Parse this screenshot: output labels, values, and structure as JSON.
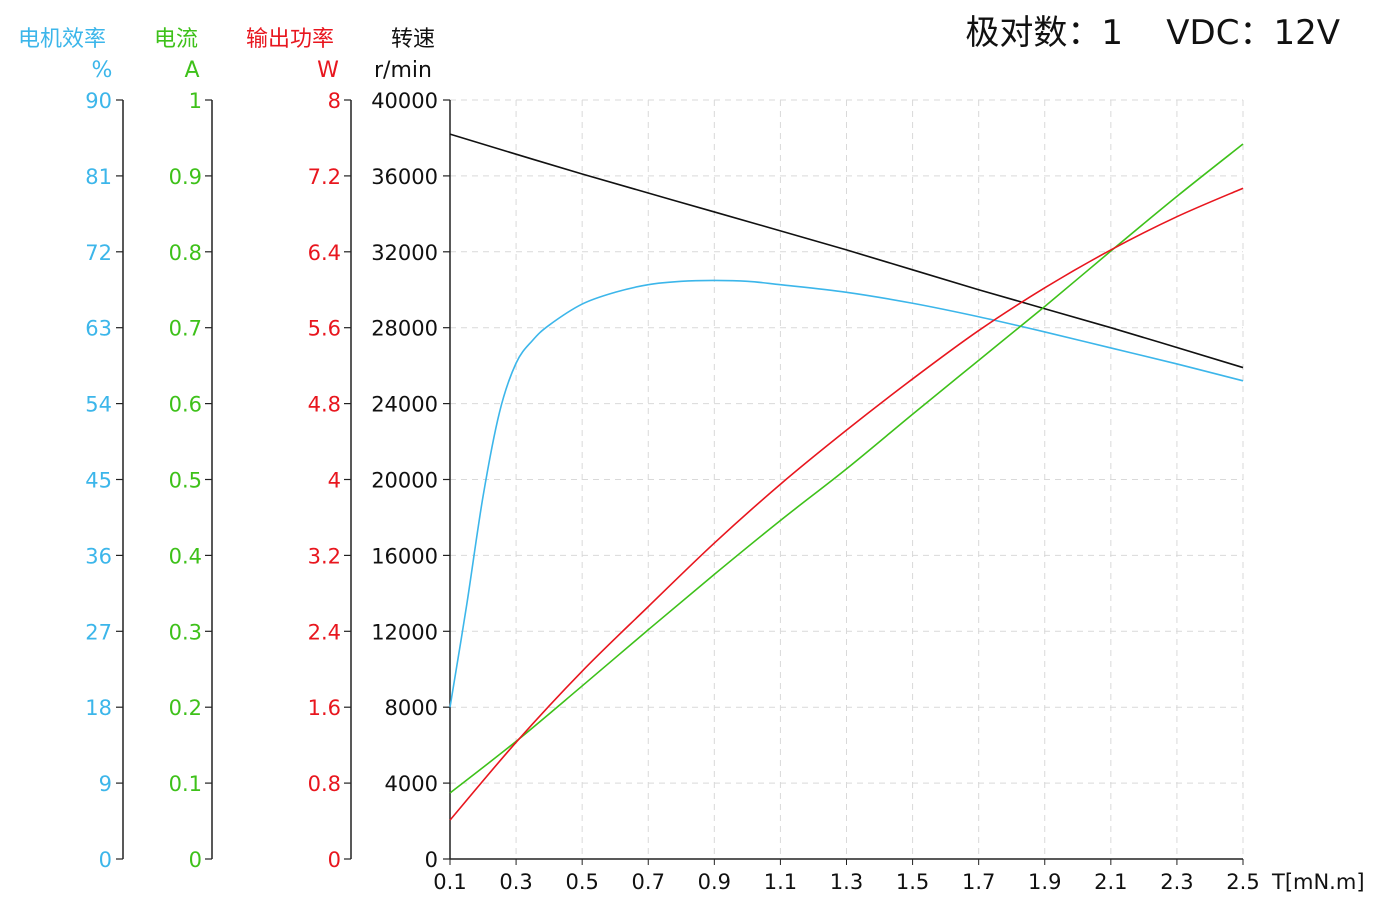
{
  "header": {
    "text": "极对数：1    VDC：12V"
  },
  "colors": {
    "efficiency": "#3cb6ea",
    "current": "#3ec11a",
    "power": "#e8161e",
    "speed": "#111111",
    "grid": "#d9d9d9",
    "axis": "#222222"
  },
  "chart_data": {
    "type": "line",
    "xlabel": "T[mN.m]",
    "x_ticks": [
      "0.1",
      "0.3",
      "0.5",
      "0.7",
      "0.9",
      "1.1",
      "1.3",
      "1.5",
      "1.7",
      "1.9",
      "2.1",
      "2.3",
      "2.5"
    ],
    "xlim": [
      0.1,
      2.5
    ],
    "grid": true,
    "axes": [
      {
        "id": "efficiency",
        "title": "电机效率",
        "unit": "%",
        "lim": [
          0,
          90
        ],
        "ticks": [
          "0",
          "9",
          "18",
          "27",
          "36",
          "45",
          "54",
          "63",
          "72",
          "81",
          "90"
        ]
      },
      {
        "id": "current",
        "title": "电流",
        "unit": "A",
        "lim": [
          0,
          1
        ],
        "ticks": [
          "0",
          "0.1",
          "0.2",
          "0.3",
          "0.4",
          "0.5",
          "0.6",
          "0.7",
          "0.8",
          "0.9",
          "1"
        ]
      },
      {
        "id": "power",
        "title": "输出功率",
        "unit": "W",
        "lim": [
          0,
          8
        ],
        "ticks": [
          "0",
          "0.8",
          "1.6",
          "2.4",
          "3.2",
          "4",
          "4.8",
          "5.6",
          "6.4",
          "7.2",
          "8"
        ]
      },
      {
        "id": "speed",
        "title": "转速",
        "unit": "r/min",
        "lim": [
          0,
          40000
        ],
        "ticks": [
          "0",
          "4000",
          "8000",
          "12000",
          "16000",
          "20000",
          "24000",
          "28000",
          "32000",
          "36000",
          "40000"
        ]
      }
    ],
    "series": [
      {
        "axis": "speed",
        "x": [
          0.1,
          0.5,
          0.9,
          1.3,
          1.7,
          2.1,
          2.5
        ],
        "y": [
          38200,
          36100,
          34100,
          32100,
          30000,
          28000,
          25900
        ]
      },
      {
        "axis": "efficiency",
        "x": [
          0.1,
          0.15,
          0.2,
          0.25,
          0.3,
          0.35,
          0.4,
          0.5,
          0.6,
          0.7,
          0.8,
          0.9,
          1.0,
          1.1,
          1.3,
          1.5,
          1.7,
          1.9,
          2.1,
          2.3,
          2.5
        ],
        "y": [
          18.0,
          30.0,
          43.0,
          53.0,
          58.8,
          61.5,
          63.3,
          65.8,
          67.2,
          68.1,
          68.5,
          68.6,
          68.5,
          68.1,
          67.2,
          65.9,
          64.3,
          62.5,
          60.6,
          58.7,
          56.7
        ]
      },
      {
        "axis": "current",
        "x": [
          0.1,
          0.3,
          0.5,
          0.7,
          0.9,
          1.1,
          1.3,
          1.5,
          1.7,
          1.9,
          2.1,
          2.3,
          2.5
        ],
        "y": [
          0.087,
          0.155,
          0.228,
          0.302,
          0.375,
          0.446,
          0.514,
          0.586,
          0.657,
          0.728,
          0.801,
          0.873,
          0.942
        ]
      },
      {
        "axis": "power",
        "x": [
          0.1,
          0.3,
          0.5,
          0.7,
          0.9,
          1.1,
          1.3,
          1.5,
          1.7,
          1.9,
          2.1,
          2.3,
          2.5
        ],
        "y": [
          0.41,
          1.23,
          1.98,
          2.66,
          3.33,
          3.95,
          4.52,
          5.06,
          5.57,
          6.02,
          6.42,
          6.77,
          7.07
        ]
      }
    ]
  }
}
